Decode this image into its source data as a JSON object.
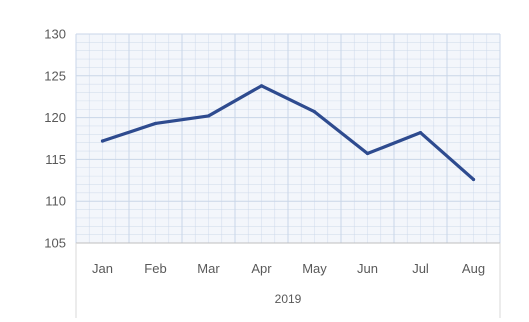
{
  "chart_data": {
    "type": "line",
    "categories": [
      "Jan",
      "Feb",
      "Mar",
      "Apr",
      "May",
      "Jun",
      "Jul",
      "Aug"
    ],
    "category_group": "2019",
    "series": [
      {
        "values": [
          117.2,
          119.3,
          120.2,
          123.8,
          120.7,
          115.7,
          118.2,
          112.6
        ]
      }
    ],
    "ylim": [
      105,
      130
    ],
    "yticks": [
      105,
      110,
      115,
      120,
      125,
      130
    ],
    "grid": true,
    "colors": {
      "line": "#2e4b8f",
      "grid": "#c9d6e8",
      "plot_bg": "#f3f6fb",
      "axis_text": "#595959"
    }
  }
}
